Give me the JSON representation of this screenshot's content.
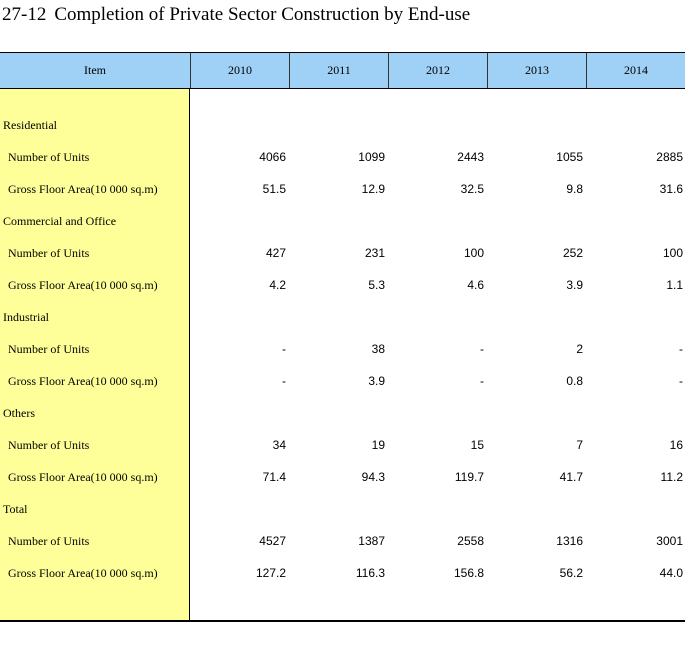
{
  "title": {
    "number": "27-12",
    "text": "Completion of Private Sector Construction by End-use"
  },
  "header": {
    "item": "Item",
    "years": [
      "2010",
      "2011",
      "2012",
      "2013",
      "2014"
    ]
  },
  "rows": [
    {
      "type": "group",
      "label": "Residential"
    },
    {
      "type": "sub",
      "label": "Number of Units",
      "values": [
        "4066",
        "1099",
        "2443",
        "1055",
        "2885"
      ]
    },
    {
      "type": "sub",
      "label": "Gross Floor Area(10 000 sq.m)",
      "values": [
        "51.5",
        "12.9",
        "32.5",
        "9.8",
        "31.6"
      ]
    },
    {
      "type": "group",
      "label": "Commercial and Office"
    },
    {
      "type": "sub",
      "label": "Number of Units",
      "values": [
        "427",
        "231",
        "100",
        "252",
        "100"
      ]
    },
    {
      "type": "sub",
      "label": "Gross Floor Area(10 000 sq.m)",
      "values": [
        "4.2",
        "5.3",
        "4.6",
        "3.9",
        "1.1"
      ]
    },
    {
      "type": "group",
      "label": "Industrial"
    },
    {
      "type": "sub",
      "label": "Number of Units",
      "values": [
        "-",
        "38",
        "-",
        "2",
        "-"
      ]
    },
    {
      "type": "sub",
      "label": "Gross Floor Area(10 000 sq.m)",
      "values": [
        "-",
        "3.9",
        "-",
        "0.8",
        "-"
      ]
    },
    {
      "type": "group",
      "label": "Others"
    },
    {
      "type": "sub",
      "label": "Number of Units",
      "values": [
        "34",
        "19",
        "15",
        "7",
        "16"
      ]
    },
    {
      "type": "sub",
      "label": "Gross Floor Area(10 000 sq.m)",
      "values": [
        "71.4",
        "94.3",
        "119.7",
        "41.7",
        "11.2"
      ]
    },
    {
      "type": "group",
      "label": "Total"
    },
    {
      "type": "sub",
      "label": "Number of Units",
      "values": [
        "4527",
        "1387",
        "2558",
        "1316",
        "3001"
      ]
    },
    {
      "type": "sub",
      "label": "Gross Floor Area(10 000 sq.m)",
      "values": [
        "127.2",
        "116.3",
        "156.8",
        "56.2",
        "44.0"
      ]
    }
  ]
}
